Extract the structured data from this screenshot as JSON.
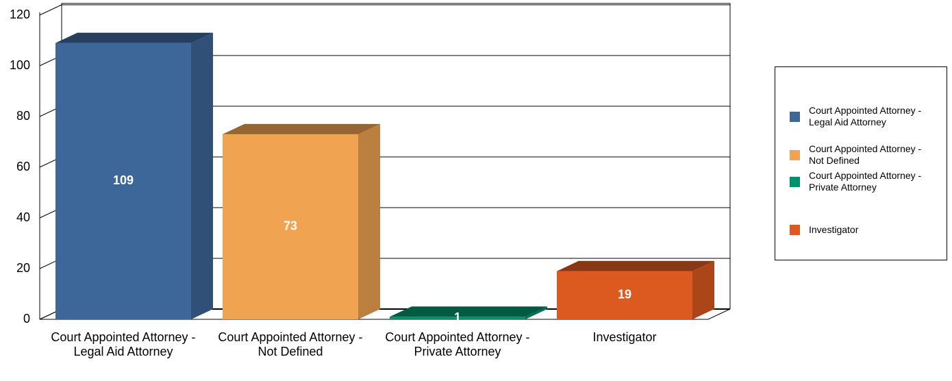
{
  "chart_data": {
    "type": "bar3d",
    "categories": [
      "Court Appointed Attorney - Legal Aid Attorney",
      "Court Appointed Attorney - Not Defined",
      "Court Appointed Attorney - Private Attorney",
      "Investigator"
    ],
    "values": [
      109,
      73,
      1,
      19
    ],
    "colors": [
      "#3d6699",
      "#f0a452",
      "#00926b",
      "#dc5a20"
    ],
    "ylim": [
      0,
      120
    ],
    "yticks": [
      0,
      20,
      40,
      60,
      80,
      100,
      120
    ],
    "grid": true,
    "legend": "right"
  }
}
